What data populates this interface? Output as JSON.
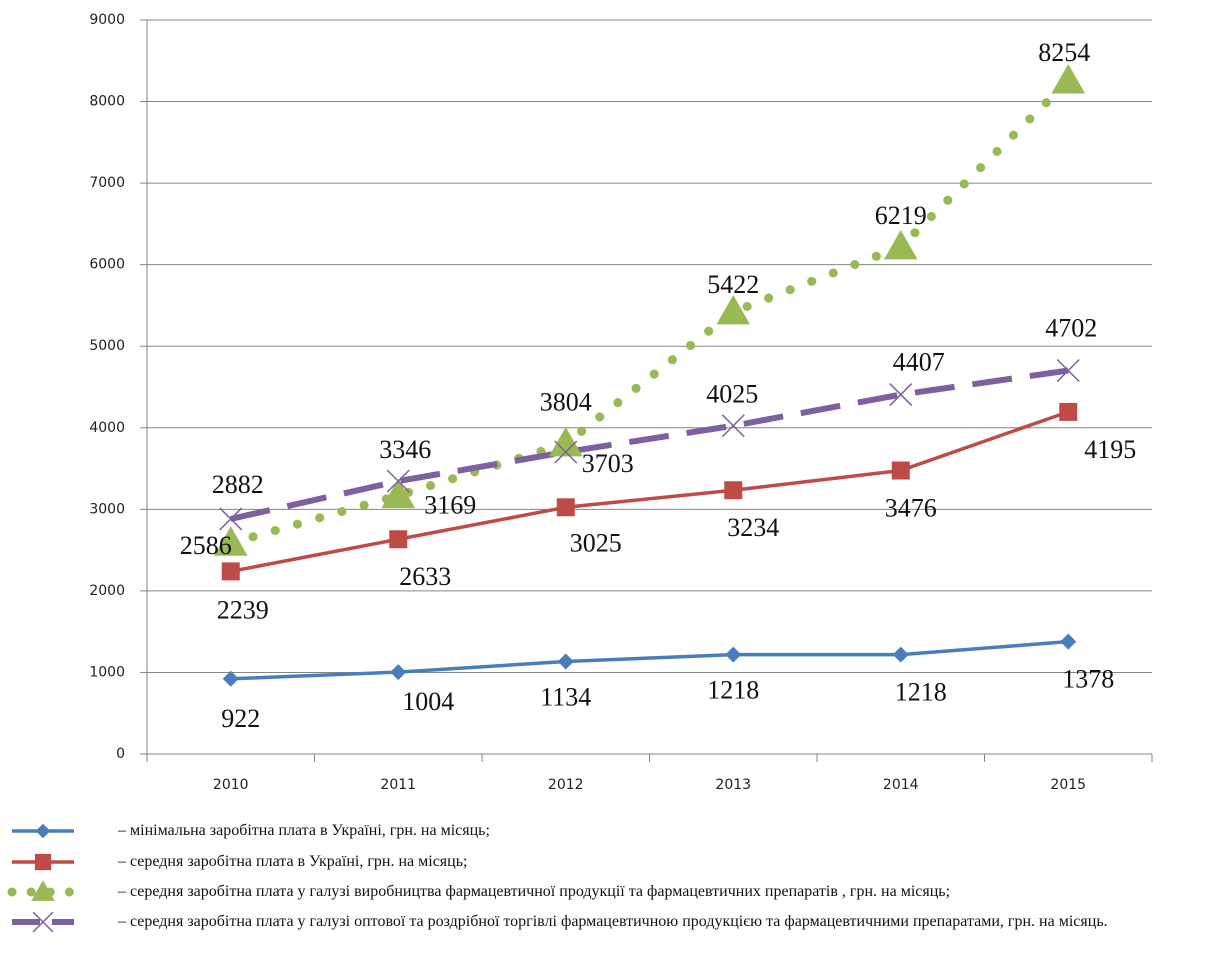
{
  "chart_data": {
    "type": "line",
    "categories": [
      "2010",
      "2011",
      "2012",
      "2013",
      "2014",
      "2015"
    ],
    "series": [
      {
        "name": "– мінімальна заробітна плата в Україні, грн. на місяць;",
        "color": "#4a7ebb",
        "marker": "diamond",
        "values": [
          922,
          1004,
          1134,
          1218,
          1218,
          1378
        ]
      },
      {
        "name": "– середня заробітна плата в Україні, грн. на місяць;",
        "color": "#be4b48",
        "marker": "square",
        "values": [
          2239,
          2633,
          3025,
          3234,
          3476,
          4195
        ]
      },
      {
        "name": "– середня заробітна плата у галузі виробництва фармацевтичної продукції та фармацевтичних препаратів , грн. на місяць;",
        "color": "#98b954",
        "marker": "triangle",
        "values": [
          2586,
          3169,
          3804,
          5422,
          6219,
          8254
        ]
      },
      {
        "name": "– середня заробітна плата у галузі оптової та роздрібної торгівлі фармацевтичною продукцією та фармацевтичними препаратами, грн. на місяць.",
        "color": "#7d60a0",
        "marker": "x",
        "values": [
          2882,
          3346,
          3703,
          4025,
          4407,
          4702
        ]
      }
    ],
    "ylim": [
      0,
      9000
    ],
    "yticks": [
      0,
      1000,
      2000,
      3000,
      4000,
      5000,
      6000,
      7000,
      8000,
      9000
    ],
    "grid": true
  }
}
